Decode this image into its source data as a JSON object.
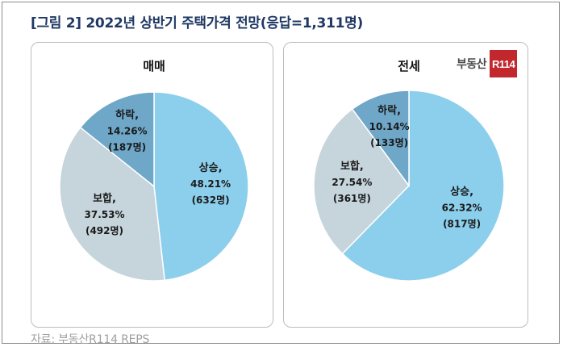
{
  "title": "[그림 2] 2022년 상반기 주택가격 전망(응답=1,311명)",
  "logo": {
    "text": "부동산",
    "badge": "R114"
  },
  "source": "자료: 부동산R114 REPS",
  "chart_data": [
    {
      "type": "pie",
      "title": "매매",
      "slices": [
        {
          "category": "상승",
          "percent_label": "48.21%",
          "count_label": "(632명)",
          "value": 48.21,
          "color": "#8ccfec"
        },
        {
          "category": "보합",
          "percent_label": "37.53%",
          "count_label": "(492명)",
          "value": 37.53,
          "color": "#c6d4dc"
        },
        {
          "category": "하락",
          "percent_label": "14.26%",
          "count_label": "(187명)",
          "value": 14.26,
          "color": "#6fa7c9"
        }
      ]
    },
    {
      "type": "pie",
      "title": "전세",
      "slices": [
        {
          "category": "상승",
          "percent_label": "62.32%",
          "count_label": "(817명)",
          "value": 62.32,
          "color": "#8ccfec"
        },
        {
          "category": "보합",
          "percent_label": "27.54%",
          "count_label": "(361명)",
          "value": 27.54,
          "color": "#c6d4dc"
        },
        {
          "category": "하락",
          "percent_label": "10.14%",
          "count_label": "(133명)",
          "value": 10.14,
          "color": "#6fa7c9"
        }
      ]
    }
  ]
}
